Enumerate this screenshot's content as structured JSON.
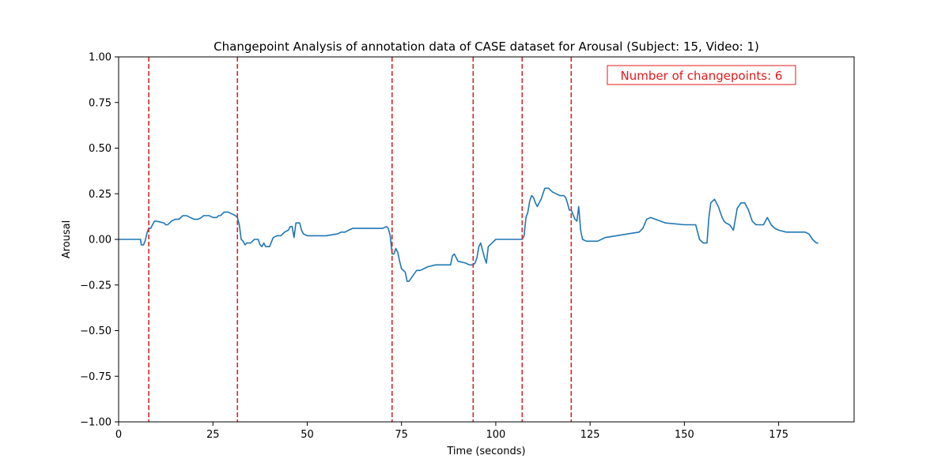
{
  "chart_data": {
    "type": "line",
    "title": "Changepoint Analysis of annotation data of CASE dataset for Arousal (Subject: 15, Video: 1)",
    "xlabel": "Time (seconds)",
    "ylabel": "Arousal",
    "xlim": [
      0,
      195
    ],
    "ylim": [
      -1.0,
      1.0
    ],
    "x_ticks": [
      0,
      25,
      50,
      75,
      100,
      125,
      150,
      175
    ],
    "x_tick_labels": [
      "0",
      "25",
      "50",
      "75",
      "100",
      "125",
      "150",
      "175"
    ],
    "y_ticks": [
      1.0,
      0.75,
      0.5,
      0.25,
      0.0,
      -0.25,
      -0.5,
      -0.75,
      -1.0
    ],
    "y_tick_labels": [
      "1.00",
      "0.75",
      "0.50",
      "0.25",
      "0.00",
      "−0.25",
      "−0.50",
      "−0.75",
      "−1.00"
    ],
    "grid": false,
    "series": [
      {
        "color": "#1f77b4",
        "x": [
          0,
          5.8,
          6,
          6.6,
          7,
          7.6,
          8,
          8.5,
          9,
          9.5,
          10,
          12,
          12.5,
          13,
          14,
          15,
          16,
          17,
          18,
          19,
          20,
          21,
          22,
          22.5,
          23,
          24,
          25,
          26,
          26.5,
          27,
          28,
          28.5,
          29,
          30,
          31,
          31.5,
          32,
          32.5,
          33,
          33.5,
          34,
          35,
          35.5,
          36,
          37,
          37.5,
          38,
          38.5,
          39,
          40,
          41,
          42,
          43,
          44,
          45,
          45.5,
          46,
          46.5,
          47,
          48,
          48.5,
          49,
          50,
          51,
          52,
          55,
          58,
          59,
          60,
          61,
          62,
          63,
          64,
          67,
          70,
          71,
          71.5,
          72,
          72.5,
          73,
          73.5,
          74,
          74.5,
          75,
          76,
          76.5,
          77,
          78,
          79,
          80,
          82,
          84,
          86,
          87,
          88,
          88.5,
          89,
          90,
          92,
          93,
          94,
          94.5,
          95,
          95.5,
          96,
          97,
          97.5,
          98,
          100,
          103,
          106,
          106.5,
          107,
          107.5,
          108,
          108.5,
          109,
          109.5,
          110,
          110.5,
          111,
          112,
          113,
          114,
          115,
          116,
          117,
          117.5,
          118,
          118.5,
          119,
          119.5,
          120,
          121,
          121.5,
          122,
          122.5,
          123,
          124,
          126,
          127,
          129,
          132,
          135,
          138,
          138.5,
          139,
          140,
          141,
          145,
          150,
          151,
          152,
          153,
          154,
          155,
          156,
          156.5,
          157,
          158,
          159,
          160,
          160.5,
          161,
          162,
          163,
          164,
          165,
          165.5,
          166,
          167,
          168,
          169,
          170,
          171,
          171.5,
          172,
          172.5,
          173,
          174,
          175,
          177,
          179,
          181,
          182,
          183,
          184,
          185,
          185.5
        ],
        "y": [
          0.0,
          0.0,
          -0.03,
          -0.03,
          -0.01,
          0.04,
          0.06,
          0.06,
          0.08,
          0.1,
          0.1,
          0.09,
          0.08,
          0.08,
          0.1,
          0.11,
          0.11,
          0.13,
          0.13,
          0.12,
          0.11,
          0.11,
          0.12,
          0.13,
          0.13,
          0.13,
          0.12,
          0.12,
          0.13,
          0.13,
          0.15,
          0.15,
          0.15,
          0.14,
          0.13,
          0.12,
          0.08,
          0.0,
          -0.01,
          -0.03,
          -0.02,
          -0.02,
          -0.01,
          0.0,
          0.0,
          -0.03,
          -0.04,
          -0.02,
          -0.04,
          -0.04,
          0.01,
          0.02,
          0.02,
          0.04,
          0.05,
          0.07,
          0.07,
          0.01,
          0.09,
          0.09,
          0.05,
          0.03,
          0.02,
          0.02,
          0.02,
          0.02,
          0.03,
          0.04,
          0.04,
          0.05,
          0.06,
          0.06,
          0.06,
          0.06,
          0.06,
          0.07,
          0.06,
          0.02,
          -0.08,
          -0.08,
          -0.05,
          -0.07,
          -0.12,
          -0.16,
          -0.18,
          -0.23,
          -0.23,
          -0.2,
          -0.17,
          -0.17,
          -0.15,
          -0.14,
          -0.14,
          -0.14,
          -0.14,
          -0.09,
          -0.08,
          -0.12,
          -0.13,
          -0.14,
          -0.14,
          -0.13,
          -0.1,
          -0.04,
          -0.02,
          -0.1,
          -0.13,
          -0.04,
          0.0,
          0.0,
          0.0,
          0.0,
          0.0,
          0.02,
          0.12,
          0.15,
          0.21,
          0.24,
          0.23,
          0.2,
          0.18,
          0.22,
          0.28,
          0.28,
          0.26,
          0.25,
          0.24,
          0.24,
          0.24,
          0.23,
          0.2,
          0.16,
          0.16,
          0.11,
          0.1,
          0.18,
          0.05,
          0.0,
          -0.01,
          -0.01,
          -0.01,
          0.01,
          0.02,
          0.03,
          0.04,
          0.05,
          0.06,
          0.11,
          0.12,
          0.09,
          0.08,
          0.08,
          0.08,
          0.08,
          0.0,
          -0.02,
          -0.02,
          0.12,
          0.2,
          0.22,
          0.18,
          0.12,
          0.1,
          0.09,
          0.08,
          0.05,
          0.17,
          0.2,
          0.2,
          0.2,
          0.16,
          0.1,
          0.08,
          0.08,
          0.08,
          0.1,
          0.12,
          0.1,
          0.08,
          0.06,
          0.05,
          0.04,
          0.04,
          0.04,
          0.04,
          0.03,
          0.0,
          -0.02,
          -0.02
        ]
      }
    ],
    "changepoints": [
      8,
      31.5,
      72.5,
      94,
      107,
      120
    ],
    "changepoint_color": "#d62728",
    "annotation": {
      "text": "Number of changepoints: 6",
      "color": "#e31a1c",
      "placement": "top-right"
    }
  }
}
